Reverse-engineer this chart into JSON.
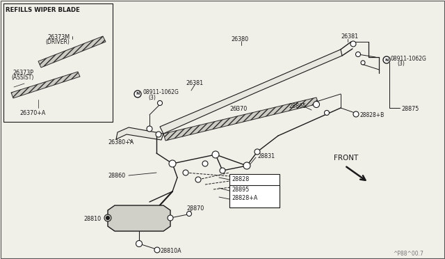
{
  "bg_color": "#f0efe8",
  "line_color": "#1a1a1a",
  "text_color": "#1a1a1a",
  "border_color": "#555555",
  "fig_width": 6.4,
  "fig_height": 3.72,
  "watermark": "^P88^00.7",
  "front_label": "FRONT",
  "refills_label": "REFILLS WIPER BLADE",
  "label_26373M": "26373M\n(DRIVER)",
  "label_26373P": "26373P\n(ASSIST)",
  "label_26380": "26380",
  "label_26380A": "26380+A",
  "label_26381": "26381",
  "label_N1": "N08911-1062G\n(3)",
  "label_N2": "N08911-1062G\n(3)",
  "label_26381b": "26381",
  "label_26370": "26370",
  "label_26370A": "26370+A",
  "label_28875": "28875",
  "label_28865": "28865",
  "label_28828B": "28828+B",
  "label_28860": "28860",
  "label_28831": "28831",
  "label_28828": "28828",
  "label_28895": "28895",
  "label_28828A": "28828+A",
  "label_28810": "28810",
  "label_28870": "28870",
  "label_28810A": "28810A"
}
